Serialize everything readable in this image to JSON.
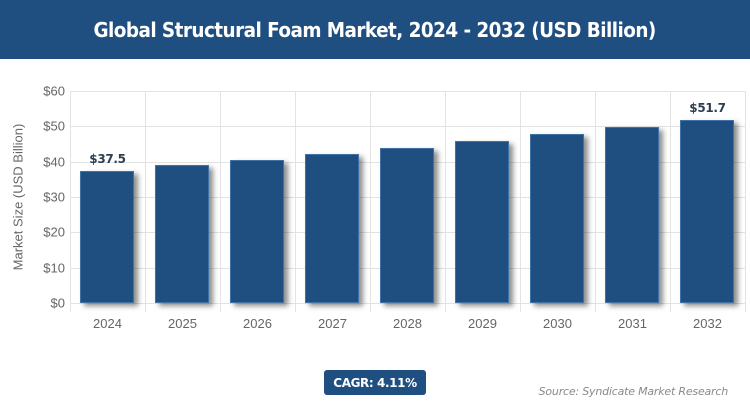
{
  "header": {
    "title": "Global Structural Foam Market, 2024 - 2032 (USD Billion)"
  },
  "chart_data": {
    "type": "bar",
    "title": "Global Structural Foam Market, 2024 - 2032 (USD Billion)",
    "xlabel": "",
    "ylabel": "Market Size (USD Billion)",
    "categories": [
      "2024",
      "2025",
      "2026",
      "2027",
      "2028",
      "2029",
      "2030",
      "2031",
      "2032"
    ],
    "values": [
      37.5,
      39.0,
      40.6,
      42.3,
      44.0,
      45.8,
      47.7,
      49.7,
      51.7
    ],
    "data_labels": {
      "0": "$37.5",
      "8": "$51.7"
    },
    "ylim": [
      0,
      60
    ],
    "yticks": [
      "$0",
      "$10",
      "$20",
      "$30",
      "$40",
      "$50",
      "$60"
    ],
    "grid": true,
    "legend": "none",
    "bar_color": "#1f4e80"
  },
  "footer": {
    "cagr_label": "CAGR: 4.11%",
    "source": "Source: Syndicate Market Research"
  }
}
